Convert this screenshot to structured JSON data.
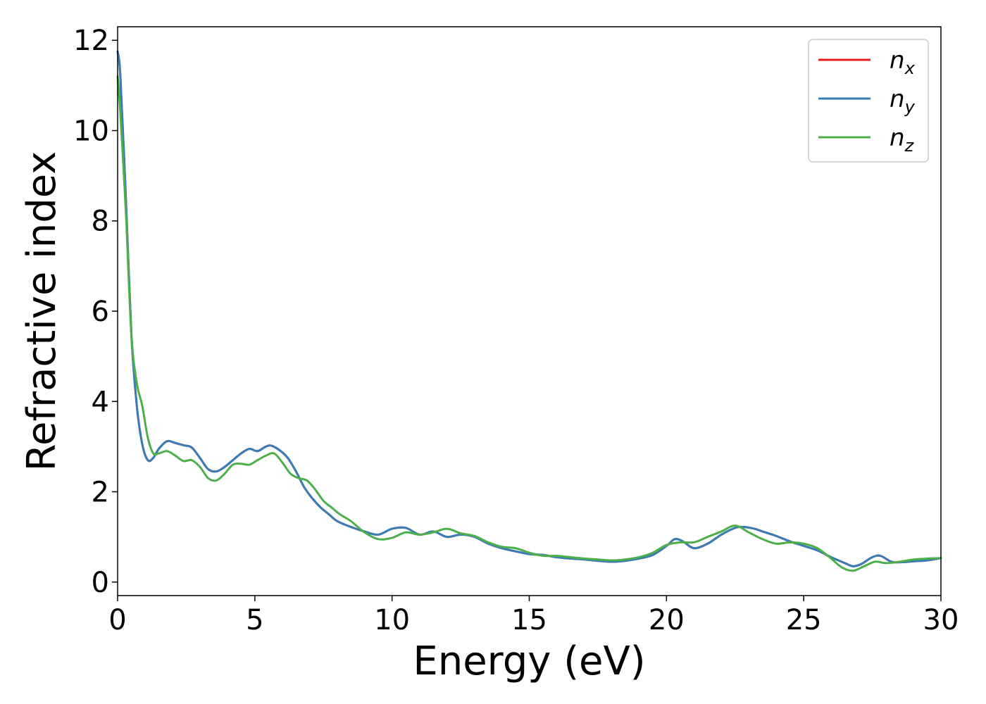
{
  "chart_data": {
    "type": "line",
    "title": "",
    "xlabel": "Energy (eV)",
    "ylabel": "Refractive index",
    "xlim": [
      0,
      30
    ],
    "ylim": [
      -0.3,
      12.3
    ],
    "xticks": [
      0,
      5,
      10,
      15,
      20,
      25,
      30
    ],
    "yticks": [
      0,
      2,
      4,
      6,
      8,
      10,
      12
    ],
    "grid": false,
    "legend_position": "top-right",
    "series": [
      {
        "name": "n_x",
        "legend_base": "n",
        "legend_sub": "x",
        "color": "#e41a1c",
        "x": [
          0,
          0.1,
          0.3,
          0.5,
          0.7,
          0.9,
          1.1,
          1.3,
          1.5,
          1.8,
          2.1,
          2.4,
          2.7,
          3.0,
          3.3,
          3.6,
          3.9,
          4.2,
          4.5,
          4.8,
          5.1,
          5.4,
          5.6,
          5.9,
          6.2,
          6.5,
          6.8,
          7.1,
          7.4,
          7.7,
          8.0,
          8.5,
          9.0,
          9.5,
          10.0,
          10.5,
          11.0,
          11.5,
          12.0,
          12.5,
          13.0,
          13.5,
          14.0,
          14.5,
          15.0,
          15.5,
          16.0,
          16.5,
          17.0,
          17.5,
          18.0,
          18.5,
          19.0,
          19.5,
          20.0,
          20.3,
          20.6,
          21.0,
          21.5,
          22.0,
          22.5,
          22.8,
          23.2,
          23.6,
          24.0,
          24.5,
          25.0,
          25.5,
          26.0,
          26.5,
          26.8,
          27.1,
          27.5,
          27.8,
          28.2,
          28.6,
          29.0,
          29.5,
          30.0
        ],
        "y": [
          11.75,
          11.2,
          8.5,
          5.5,
          3.9,
          3.05,
          2.7,
          2.75,
          2.95,
          3.12,
          3.08,
          3.03,
          2.98,
          2.75,
          2.5,
          2.45,
          2.55,
          2.7,
          2.85,
          2.95,
          2.9,
          3.0,
          3.02,
          2.92,
          2.75,
          2.45,
          2.1,
          1.85,
          1.65,
          1.5,
          1.35,
          1.22,
          1.12,
          1.05,
          1.18,
          1.2,
          1.05,
          1.12,
          1.0,
          1.05,
          1.0,
          0.85,
          0.75,
          0.68,
          0.62,
          0.6,
          0.55,
          0.52,
          0.5,
          0.47,
          0.45,
          0.47,
          0.52,
          0.6,
          0.8,
          0.95,
          0.9,
          0.75,
          0.85,
          1.05,
          1.2,
          1.22,
          1.18,
          1.1,
          1.02,
          0.9,
          0.8,
          0.7,
          0.55,
          0.42,
          0.35,
          0.4,
          0.55,
          0.58,
          0.45,
          0.44,
          0.46,
          0.48,
          0.53
        ]
      },
      {
        "name": "n_y",
        "legend_base": "n",
        "legend_sub": "y",
        "color": "#377eb8",
        "x": [
          0,
          0.1,
          0.3,
          0.5,
          0.7,
          0.9,
          1.1,
          1.3,
          1.5,
          1.8,
          2.1,
          2.4,
          2.7,
          3.0,
          3.3,
          3.6,
          3.9,
          4.2,
          4.5,
          4.8,
          5.1,
          5.4,
          5.6,
          5.9,
          6.2,
          6.5,
          6.8,
          7.1,
          7.4,
          7.7,
          8.0,
          8.5,
          9.0,
          9.5,
          10.0,
          10.5,
          11.0,
          11.5,
          12.0,
          12.5,
          13.0,
          13.5,
          14.0,
          14.5,
          15.0,
          15.5,
          16.0,
          16.5,
          17.0,
          17.5,
          18.0,
          18.5,
          19.0,
          19.5,
          20.0,
          20.3,
          20.6,
          21.0,
          21.5,
          22.0,
          22.5,
          22.8,
          23.2,
          23.6,
          24.0,
          24.5,
          25.0,
          25.5,
          26.0,
          26.5,
          26.8,
          27.1,
          27.5,
          27.8,
          28.2,
          28.6,
          29.0,
          29.5,
          30.0
        ],
        "y": [
          11.75,
          11.2,
          8.5,
          5.5,
          3.9,
          3.05,
          2.7,
          2.75,
          2.95,
          3.12,
          3.08,
          3.03,
          2.98,
          2.75,
          2.5,
          2.45,
          2.55,
          2.7,
          2.85,
          2.95,
          2.9,
          3.0,
          3.02,
          2.92,
          2.75,
          2.45,
          2.1,
          1.85,
          1.65,
          1.5,
          1.35,
          1.22,
          1.12,
          1.05,
          1.18,
          1.2,
          1.05,
          1.12,
          1.0,
          1.05,
          1.0,
          0.85,
          0.75,
          0.68,
          0.62,
          0.6,
          0.55,
          0.52,
          0.5,
          0.47,
          0.45,
          0.47,
          0.52,
          0.6,
          0.8,
          0.95,
          0.9,
          0.75,
          0.85,
          1.05,
          1.2,
          1.22,
          1.18,
          1.1,
          1.02,
          0.9,
          0.8,
          0.7,
          0.55,
          0.42,
          0.35,
          0.4,
          0.55,
          0.58,
          0.45,
          0.44,
          0.46,
          0.48,
          0.53
        ]
      },
      {
        "name": "n_z",
        "legend_base": "n",
        "legend_sub": "z",
        "color": "#4daf4a",
        "x": [
          0,
          0.1,
          0.3,
          0.5,
          0.7,
          0.9,
          1.1,
          1.3,
          1.5,
          1.8,
          2.1,
          2.4,
          2.7,
          3.0,
          3.3,
          3.6,
          3.9,
          4.2,
          4.5,
          4.8,
          5.1,
          5.4,
          5.7,
          6.0,
          6.3,
          6.6,
          6.9,
          7.2,
          7.5,
          7.8,
          8.1,
          8.5,
          9.0,
          9.5,
          10.0,
          10.5,
          11.0,
          11.5,
          12.0,
          12.5,
          13.0,
          13.5,
          14.0,
          14.5,
          15.0,
          15.5,
          16.0,
          16.5,
          17.0,
          17.5,
          18.0,
          18.5,
          19.0,
          19.5,
          20.0,
          20.5,
          21.0,
          21.5,
          22.0,
          22.5,
          23.0,
          23.5,
          24.0,
          24.5,
          25.0,
          25.5,
          26.0,
          26.4,
          26.8,
          27.2,
          27.6,
          28.0,
          28.5,
          29.0,
          29.5,
          30.0
        ],
        "y": [
          11.2,
          10.4,
          8.2,
          5.5,
          4.4,
          3.9,
          3.2,
          2.85,
          2.85,
          2.9,
          2.8,
          2.68,
          2.7,
          2.55,
          2.3,
          2.25,
          2.4,
          2.6,
          2.62,
          2.6,
          2.7,
          2.8,
          2.85,
          2.65,
          2.4,
          2.3,
          2.25,
          2.05,
          1.8,
          1.65,
          1.5,
          1.35,
          1.1,
          0.95,
          0.98,
          1.1,
          1.05,
          1.1,
          1.18,
          1.08,
          1.02,
          0.88,
          0.78,
          0.75,
          0.65,
          0.58,
          0.58,
          0.55,
          0.52,
          0.5,
          0.48,
          0.5,
          0.55,
          0.65,
          0.82,
          0.88,
          0.88,
          1.0,
          1.12,
          1.25,
          1.1,
          0.95,
          0.85,
          0.88,
          0.85,
          0.75,
          0.52,
          0.32,
          0.25,
          0.35,
          0.45,
          0.42,
          0.45,
          0.5,
          0.52,
          0.53
        ]
      }
    ]
  }
}
